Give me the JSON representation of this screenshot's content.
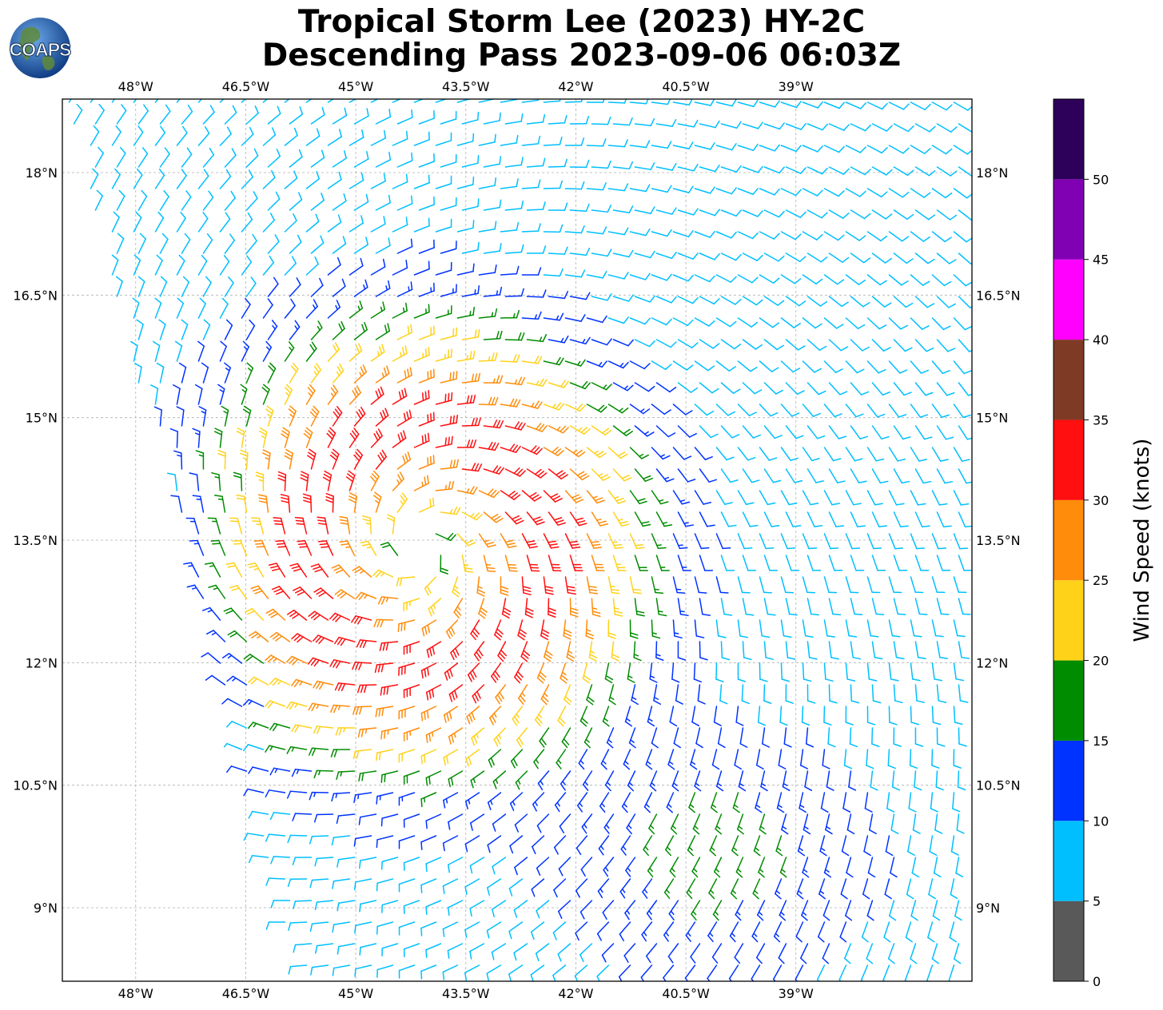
{
  "title": {
    "line1": "Tropical Storm Lee (2023) HY-2C",
    "line2": "Descending Pass 2023-09-06 06:03Z"
  },
  "logo": {
    "text": "COAPS",
    "globe_color": "#2a6db5",
    "land_color": "#5f8a3a"
  },
  "map": {
    "lon_range": [
      -49.0,
      -36.6
    ],
    "lat_range": [
      8.1,
      18.9
    ],
    "lon_ticks": [
      {
        "value": -48.0,
        "label": "48°W"
      },
      {
        "value": -46.5,
        "label": "46.5°W"
      },
      {
        "value": -45.0,
        "label": "45°W"
      },
      {
        "value": -43.5,
        "label": "43.5°W"
      },
      {
        "value": -42.0,
        "label": "42°W"
      },
      {
        "value": -40.5,
        "label": "40.5°W"
      },
      {
        "value": -39.0,
        "label": "39°W"
      }
    ],
    "lat_ticks": [
      {
        "value": 18.0,
        "label": "18°N"
      },
      {
        "value": 16.5,
        "label": "16.5°N"
      },
      {
        "value": 15.0,
        "label": "15°N"
      },
      {
        "value": 13.5,
        "label": "13.5°N"
      },
      {
        "value": 12.0,
        "label": "12°N"
      },
      {
        "value": 10.5,
        "label": "10.5°N"
      },
      {
        "value": 9.0,
        "label": "9°N"
      }
    ],
    "gridlines": true,
    "storm_center": {
      "lon": -43.5,
      "lat": 13.5
    }
  },
  "colorbar": {
    "label": "Wind Speed (knots)",
    "bins": [
      {
        "min": 0,
        "max": 5,
        "color": "#595959"
      },
      {
        "min": 5,
        "max": 10,
        "color": "#00bfff"
      },
      {
        "min": 10,
        "max": 15,
        "color": "#0033ff"
      },
      {
        "min": 15,
        "max": 20,
        "color": "#008c00"
      },
      {
        "min": 20,
        "max": 25,
        "color": "#ffd21a"
      },
      {
        "min": 25,
        "max": 30,
        "color": "#ff8c0a"
      },
      {
        "min": 30,
        "max": 35,
        "color": "#ff0f0f"
      },
      {
        "min": 35,
        "max": 40,
        "color": "#7f3a26"
      },
      {
        "min": 40,
        "max": 45,
        "color": "#ff00ff"
      },
      {
        "min": 45,
        "max": 50,
        "color": "#8000b3"
      },
      {
        "min": 50,
        "max": 55,
        "color": "#2d005a"
      }
    ],
    "ticks": [
      {
        "value": 0,
        "label": "0"
      },
      {
        "value": 5,
        "label": "5"
      },
      {
        "value": 10,
        "label": "10"
      },
      {
        "value": 15,
        "label": "15"
      },
      {
        "value": 20,
        "label": "20"
      },
      {
        "value": 25,
        "label": "25"
      },
      {
        "value": 30,
        "label": "30"
      },
      {
        "value": 35,
        "label": "35"
      },
      {
        "value": 40,
        "label": "40"
      },
      {
        "value": 45,
        "label": "45"
      },
      {
        "value": 50,
        "label": "50"
      }
    ]
  }
}
